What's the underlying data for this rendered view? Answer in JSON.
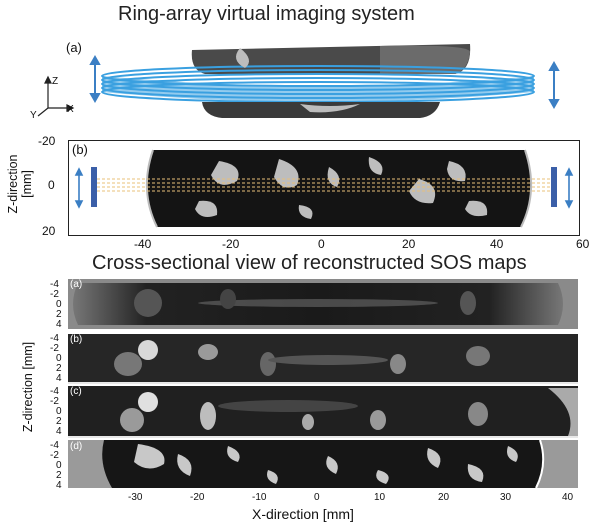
{
  "top_title": "Ring-array virtual imaging system",
  "bottom_title": "Cross-sectional view of reconstructed SOS maps",
  "panel_a": {
    "label": "(a)",
    "axes": {
      "z": "Z",
      "y": "Y",
      "x": "X"
    }
  },
  "panel_b": {
    "label": "(b)",
    "ylabel": "Z-direction\n[mm]",
    "ylabel_line1": "Z-direction",
    "ylabel_line2": "[mm]",
    "y_ticks": [
      "-20",
      "0",
      "20"
    ],
    "x_ticks": [
      "-40",
      "-20",
      "0",
      "20",
      "40",
      "60"
    ]
  },
  "sos_maps": {
    "ylabel": "Z-direction [mm]",
    "xlabel": "X-direction [mm]",
    "x_ticks": [
      "-30",
      "-20",
      "-10",
      "0",
      "10",
      "20",
      "30",
      "40"
    ],
    "panels": [
      {
        "label": "(a)",
        "y_ticks": [
          "-4",
          "-2",
          "0",
          "2",
          "4"
        ]
      },
      {
        "label": "(b)",
        "y_ticks": [
          "-4",
          "-2",
          "0",
          "2",
          "4"
        ]
      },
      {
        "label": "(c)",
        "y_ticks": [
          "-4",
          "-2",
          "0",
          "2",
          "4"
        ]
      },
      {
        "label": "(d)",
        "y_ticks": [
          "-4",
          "-2",
          "0",
          "2",
          "4"
        ]
      }
    ]
  },
  "colors": {
    "ring": "#3aa0e0",
    "arrow": "#3b7fc4",
    "tissue": "#111111",
    "beam": "#e8c07a"
  }
}
